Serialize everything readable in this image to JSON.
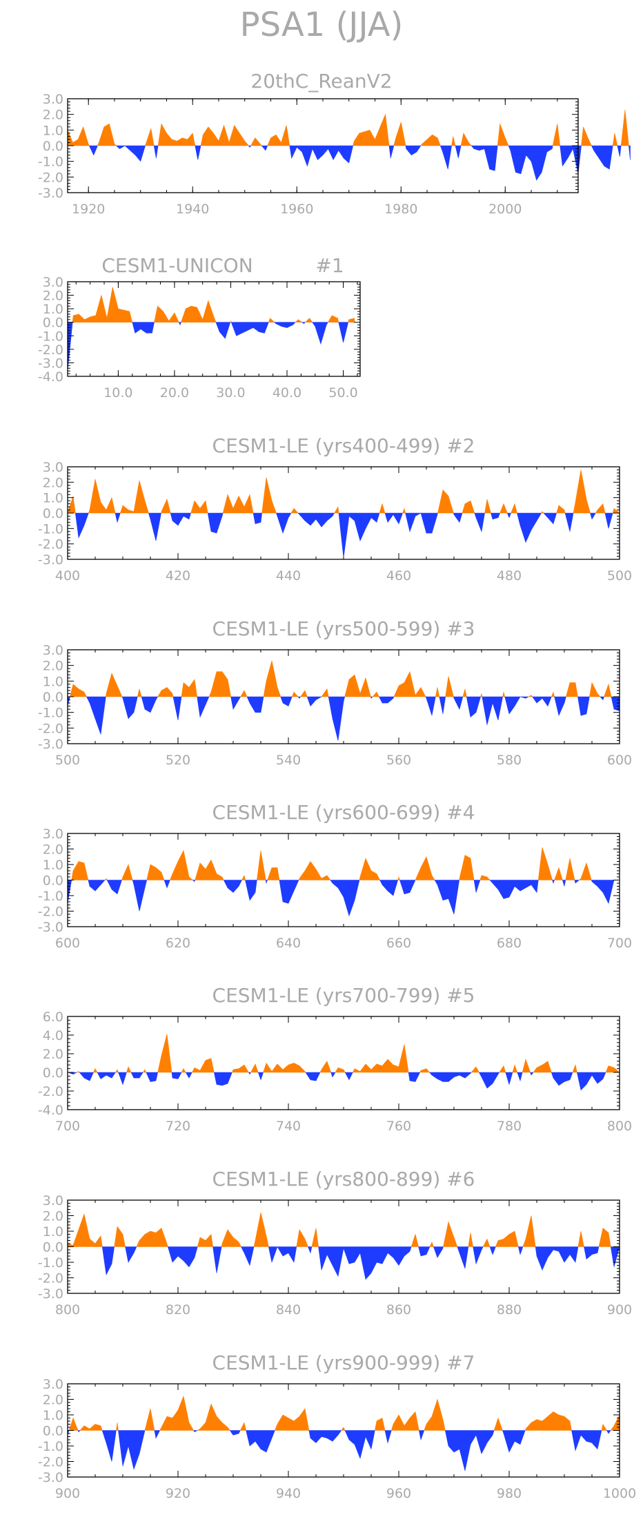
{
  "figure_title": "PSA1 (JJA)",
  "colors": {
    "positive": "#ff8000",
    "negative": "#1e3cff",
    "text": "#a9a9a9",
    "frame": "#000000"
  },
  "chart_data": [
    {
      "type": "area",
      "title": "20thC_ReanV2",
      "xlim": [
        1916,
        2014
      ],
      "ylim": [
        -3.0,
        3.0
      ],
      "x_ticks": [
        1920,
        1940,
        1960,
        1980,
        2000
      ],
      "x_tick_labels": [
        "1920",
        "1940",
        "1960",
        "1980",
        "2000"
      ],
      "y_ticks": [
        3.0,
        2.0,
        1.0,
        0.0,
        -1.0,
        -2.0,
        -3.0
      ],
      "y_tick_labels": [
        "3.0",
        "2.0",
        "1.0",
        "0.0",
        "-1.0",
        "-2.0",
        "-3.0"
      ],
      "x_start": 1916,
      "x_step": 1,
      "values": [
        1.0,
        0.2,
        0.4,
        1.2,
        0.1,
        -0.6,
        0.2,
        1.2,
        1.4,
        0.1,
        -0.2,
        0.0,
        -0.3,
        -0.6,
        -1.0,
        0.1,
        1.1,
        -0.8,
        1.4,
        0.8,
        0.4,
        0.3,
        0.5,
        0.4,
        0.8,
        -0.9,
        0.7,
        1.2,
        0.8,
        0.3,
        1.3,
        0.2,
        1.3,
        0.8,
        0.3,
        -0.1,
        0.5,
        0.1,
        -0.3,
        0.5,
        0.7,
        0.2,
        1.3,
        -0.8,
        -0.1,
        -0.4,
        -1.3,
        -0.2,
        -0.9,
        -0.6,
        -0.2,
        -0.9,
        -0.3,
        -0.8,
        -1.1,
        0.3,
        0.8,
        0.9,
        1.0,
        0.4,
        1.2,
        2.0,
        -0.8,
        0.5,
        1.5,
        -0.2,
        -0.6,
        -0.4,
        0.1,
        0.4,
        0.7,
        0.5,
        -0.4,
        -1.5,
        0.6,
        -0.8,
        0.8,
        0.2,
        -0.2,
        -0.3,
        -0.2,
        -1.5,
        -1.6,
        1.4,
        0.5,
        -0.3,
        -1.7,
        -1.8,
        -0.6,
        -1.0,
        -2.2,
        -1.7,
        -0.4,
        -0.2,
        1.4,
        -1.3,
        -0.8,
        -0.2,
        -1.8,
        1.2,
        0.4,
        -0.3,
        -0.8,
        -1.3,
        -1.5,
        0.8,
        -0.7,
        2.3,
        -0.9
      ]
    },
    {
      "type": "area",
      "title": "CESM1-UNICON",
      "tag": "#1",
      "xlim": [
        1,
        53
      ],
      "ylim": [
        -4.0,
        3.0
      ],
      "x_ticks": [
        10,
        20,
        30,
        40,
        50
      ],
      "x_tick_labels": [
        "10.0",
        "20.0",
        "30.0",
        "40.0",
        "50.0"
      ],
      "y_ticks": [
        3.0,
        2.0,
        1.0,
        0.0,
        -1.0,
        -2.0,
        -3.0,
        -4.0
      ],
      "y_tick_labels": [
        "3.0",
        "2.0",
        "1.0",
        "0.0",
        "-1.0",
        "-2.0",
        "-3.0",
        "-4.0"
      ],
      "x_start": 1,
      "x_step": 1,
      "values": [
        -3.6,
        0.5,
        0.6,
        0.2,
        0.4,
        0.5,
        2.0,
        0.3,
        2.6,
        1.0,
        0.9,
        0.8,
        -0.8,
        -0.5,
        -0.8,
        -0.8,
        1.2,
        0.8,
        0.1,
        0.7,
        -0.2,
        1.0,
        1.2,
        1.1,
        0.2,
        1.6,
        0.4,
        -0.7,
        -1.2,
        0.1,
        -1.0,
        -0.8,
        -0.6,
        -0.4,
        -0.7,
        -0.8,
        0.3,
        -0.1,
        -0.3,
        -0.4,
        -0.2,
        0.2,
        -0.1,
        0.3,
        -0.3,
        -1.6,
        -0.2,
        0.5,
        0.3,
        -1.5,
        0.2,
        0.3
      ]
    },
    {
      "type": "area",
      "title": "CESM1-LE (yrs400-499)",
      "tag": "#2",
      "xlim": [
        400,
        500
      ],
      "ylim": [
        -3.0,
        3.0
      ],
      "x_ticks": [
        400,
        420,
        440,
        460,
        480,
        500
      ],
      "x_tick_labels": [
        "400",
        "420",
        "440",
        "460",
        "480",
        "500"
      ],
      "y_ticks": [
        3.0,
        2.0,
        1.0,
        0.0,
        -1.0,
        -2.0,
        -3.0
      ],
      "y_tick_labels": [
        "3.0",
        "2.0",
        "1.0",
        "0.0",
        "-1.0",
        "-2.0",
        "-3.0"
      ],
      "x_start": 400,
      "x_step": 1,
      "values": [
        0.0,
        1.1,
        -1.6,
        -0.8,
        0.2,
        2.2,
        0.7,
        0.2,
        1.0,
        -0.6,
        0.5,
        0.2,
        0.1,
        2.1,
        0.8,
        -0.4,
        -1.8,
        0.1,
        0.9,
        -0.5,
        -0.8,
        -0.2,
        -0.4,
        0.8,
        0.3,
        0.8,
        -1.2,
        -1.3,
        -0.2,
        1.2,
        0.3,
        1.1,
        0.4,
        1.2,
        -0.7,
        -0.6,
        2.3,
        0.8,
        -0.2,
        -1.3,
        -0.3,
        0.3,
        -0.1,
        -0.5,
        -0.8,
        -0.4,
        -0.9,
        -0.5,
        -0.2,
        0.4,
        -2.9,
        -0.2,
        -0.5,
        -1.8,
        -1.0,
        -0.3,
        -0.6,
        0.6,
        -0.6,
        -0.1,
        -0.7,
        0.3,
        -1.2,
        -0.2,
        0.0,
        -1.3,
        -1.3,
        -0.1,
        1.5,
        1.1,
        -0.1,
        -0.6,
        0.6,
        0.8,
        -0.3,
        -1.2,
        0.9,
        -0.4,
        -0.3,
        0.6,
        -0.3,
        0.6,
        -0.8,
        -1.9,
        -1.1,
        -0.5,
        0.1,
        -0.3,
        -0.7,
        0.5,
        0.2,
        -1.2,
        0.7,
        2.8,
        0.9,
        -0.4,
        0.2,
        0.6,
        -1.0,
        0.3,
        0.0
      ]
    },
    {
      "type": "area",
      "title": "CESM1-LE (yrs500-599)",
      "tag": "#3",
      "xlim": [
        500,
        600
      ],
      "ylim": [
        -3.0,
        3.0
      ],
      "x_ticks": [
        500,
        520,
        540,
        560,
        580,
        600
      ],
      "x_tick_labels": [
        "500",
        "520",
        "540",
        "560",
        "580",
        "600"
      ],
      "y_ticks": [
        3.0,
        2.0,
        1.0,
        0.0,
        -1.0,
        -2.0,
        -3.0
      ],
      "y_tick_labels": [
        "3.0",
        "2.0",
        "1.0",
        "0.0",
        "-1.0",
        "-2.0",
        "-3.0"
      ],
      "x_start": 500,
      "x_step": 1,
      "values": [
        -0.6,
        0.8,
        0.5,
        0.3,
        -0.4,
        -1.4,
        -2.4,
        0.2,
        1.5,
        0.7,
        -0.1,
        -1.4,
        -1.0,
        0.5,
        -0.8,
        -1.0,
        -0.2,
        0.4,
        0.6,
        0.2,
        -1.5,
        0.9,
        0.6,
        1.1,
        -1.3,
        -0.5,
        0.3,
        1.6,
        1.6,
        1.1,
        -0.8,
        -0.2,
        0.4,
        -0.4,
        -1.0,
        -1.0,
        1.0,
        2.3,
        0.6,
        -0.4,
        -0.6,
        0.3,
        -0.1,
        0.4,
        -0.6,
        -0.2,
        0.0,
        0.5,
        -1.4,
        -2.8,
        -0.3,
        1.1,
        1.4,
        0.2,
        1.2,
        -0.1,
        0.3,
        -0.4,
        -0.4,
        -0.1,
        0.7,
        0.9,
        1.6,
        0.1,
        0.6,
        -0.1,
        -1.2,
        0.6,
        -1.1,
        1.3,
        -0.1,
        -0.8,
        0.5,
        -1.3,
        -1.0,
        0.2,
        -1.8,
        -0.4,
        -1.5,
        0.3,
        -1.1,
        -0.6,
        0.0,
        -0.1,
        0.1,
        -0.4,
        -0.1,
        -0.6,
        0.3,
        -1.2,
        -0.4,
        0.9,
        0.9,
        -1.2,
        -1.1,
        0.9,
        0.2,
        -0.2,
        0.8,
        -0.8,
        -0.9
      ]
    },
    {
      "type": "area",
      "title": "CESM1-LE (yrs600-699)",
      "tag": "#4",
      "xlim": [
        600,
        700
      ],
      "ylim": [
        -3.0,
        3.0
      ],
      "x_ticks": [
        600,
        620,
        640,
        660,
        680,
        700
      ],
      "x_tick_labels": [
        "600",
        "620",
        "640",
        "660",
        "680",
        "700"
      ],
      "y_ticks": [
        3.0,
        2.0,
        1.0,
        0.0,
        -1.0,
        -2.0,
        -3.0
      ],
      "y_tick_labels": [
        "3.0",
        "2.0",
        "1.0",
        "0.0",
        "-1.0",
        "-2.0",
        "-3.0"
      ],
      "x_start": 600,
      "x_step": 1,
      "values": [
        -1.5,
        0.6,
        1.2,
        1.1,
        -0.4,
        -0.7,
        -0.3,
        0.1,
        -0.6,
        -0.9,
        0.2,
        1.0,
        -0.3,
        -2.0,
        -0.5,
        1.0,
        0.8,
        0.5,
        -0.5,
        0.4,
        1.2,
        1.9,
        0.2,
        -0.1,
        1.1,
        0.7,
        1.3,
        0.4,
        0.2,
        -0.5,
        -0.8,
        -0.4,
        0.3,
        -1.3,
        -0.8,
        1.9,
        -0.2,
        0.8,
        0.8,
        -1.4,
        -1.5,
        -0.7,
        0.1,
        0.6,
        1.2,
        0.7,
        0.1,
        0.3,
        -0.2,
        -0.5,
        -1.1,
        -2.3,
        -1.3,
        0.2,
        1.4,
        0.6,
        0.4,
        -0.3,
        -0.7,
        -1.0,
        0.2,
        -0.9,
        -0.8,
        0.0,
        0.8,
        1.5,
        0.3,
        -0.3,
        -1.3,
        -1.2,
        -2.2,
        0.1,
        1.6,
        1.4,
        -0.8,
        0.3,
        0.2,
        -0.2,
        -0.6,
        -1.2,
        -1.1,
        -0.4,
        -0.7,
        -0.5,
        -0.3,
        -0.8,
        2.1,
        1.0,
        -0.2,
        0.8,
        -0.4,
        1.4,
        -0.2,
        0.1,
        1.1,
        -0.1,
        -0.4,
        -0.8,
        -1.5,
        0.0
      ]
    },
    {
      "type": "area",
      "title": "CESM1-LE (yrs700-799)",
      "tag": "#5",
      "xlim": [
        700,
        800
      ],
      "ylim": [
        -4.0,
        6.0
      ],
      "x_ticks": [
        700,
        720,
        740,
        760,
        780,
        800
      ],
      "x_tick_labels": [
        "700",
        "720",
        "740",
        "760",
        "780",
        "800"
      ],
      "y_ticks": [
        6.0,
        4.0,
        2.0,
        0.0,
        -2.0,
        -4.0
      ],
      "y_tick_labels": [
        "6.0",
        "4.0",
        "2.0",
        "0.0",
        "-2.0",
        "-4.0"
      ],
      "x_start": 700,
      "x_step": 1,
      "values": [
        0.0,
        -0.2,
        0.1,
        -0.6,
        -0.9,
        0.4,
        -0.7,
        -0.3,
        -0.6,
        0.3,
        -1.3,
        0.6,
        -0.6,
        -0.6,
        0.3,
        -1.0,
        -0.9,
        1.8,
        4.1,
        -0.6,
        -0.7,
        0.4,
        -0.6,
        0.5,
        0.2,
        1.3,
        1.5,
        -1.3,
        -1.4,
        -1.2,
        0.3,
        0.4,
        0.8,
        -0.2,
        0.9,
        -0.8,
        1.0,
        0.1,
        0.9,
        0.3,
        0.8,
        1.0,
        0.7,
        0.1,
        -0.8,
        -0.9,
        0.3,
        1.2,
        -0.5,
        0.5,
        0.3,
        -0.8,
        0.4,
        0.1,
        0.9,
        0.3,
        0.9,
        0.7,
        1.4,
        0.8,
        0.6,
        3.0,
        -0.9,
        -1.0,
        0.2,
        0.4,
        -0.3,
        -0.7,
        -1.0,
        -1.0,
        -0.5,
        -0.3,
        -0.6,
        -0.1,
        0.6,
        -0.5,
        -1.7,
        -1.2,
        -0.2,
        0.7,
        -1.3,
        0.8,
        -0.9,
        1.4,
        -0.3,
        0.5,
        0.8,
        1.2,
        -0.6,
        -1.4,
        -1.0,
        -0.8,
        0.8,
        -1.9,
        -1.3,
        -0.3,
        -1.2,
        -0.7,
        0.7,
        0.5,
        0.0
      ]
    },
    {
      "type": "area",
      "title": "CESM1-LE (yrs800-899)",
      "tag": "#6",
      "xlim": [
        800,
        900
      ],
      "ylim": [
        -3.0,
        3.0
      ],
      "x_ticks": [
        800,
        820,
        840,
        860,
        880,
        900
      ],
      "x_tick_labels": [
        "800",
        "820",
        "840",
        "860",
        "880",
        "900"
      ],
      "y_ticks": [
        3.0,
        2.0,
        1.0,
        0.0,
        -1.0,
        -2.0,
        -3.0
      ],
      "y_tick_labels": [
        "3.0",
        "2.0",
        "1.0",
        "0.0",
        "-1.0",
        "-2.0",
        "-3.0"
      ],
      "x_start": 800,
      "x_step": 1,
      "values": [
        0.2,
        0.1,
        1.1,
        2.1,
        0.5,
        0.2,
        0.7,
        -1.8,
        -1.1,
        1.3,
        0.8,
        -1.0,
        -0.4,
        0.4,
        0.8,
        1.0,
        0.9,
        1.2,
        0.2,
        -1.0,
        -0.6,
        -0.9,
        -1.3,
        -0.7,
        0.6,
        0.4,
        0.8,
        -1.7,
        0.2,
        1.1,
        0.6,
        0.3,
        -0.4,
        -1.2,
        0.4,
        2.2,
        0.7,
        -1.0,
        0.0,
        -0.6,
        -0.4,
        -1.0,
        1.1,
        0.5,
        -0.4,
        1.2,
        -1.5,
        -0.5,
        -1.2,
        -1.9,
        -0.1,
        -1.1,
        -1.0,
        -0.4,
        -2.1,
        -1.7,
        -1.0,
        -1.1,
        -0.4,
        -0.7,
        -1.2,
        -0.6,
        -0.3,
        0.8,
        -0.6,
        -0.5,
        0.3,
        -0.7,
        -0.1,
        1.6,
        0.6,
        -0.4,
        -1.4,
        0.9,
        -1.1,
        -0.2,
        0.5,
        -0.5,
        0.4,
        0.5,
        0.8,
        1.0,
        -0.5,
        0.5,
        2.0,
        -0.6,
        -1.5,
        -0.7,
        -0.2,
        -0.3,
        -1.0,
        -0.5,
        -1.0,
        1.0,
        -0.8,
        -0.5,
        -0.4,
        1.2,
        0.9,
        -1.3,
        0.0
      ]
    },
    {
      "type": "area",
      "title": "CESM1-LE (yrs900-999)",
      "tag": "#7",
      "xlim": [
        900,
        1000
      ],
      "ylim": [
        -3.0,
        3.0
      ],
      "x_ticks": [
        900,
        920,
        940,
        960,
        980,
        1000
      ],
      "x_tick_labels": [
        "900",
        "920",
        "940",
        "960",
        "980",
        "1000"
      ],
      "y_ticks": [
        3.0,
        2.0,
        1.0,
        0.0,
        -1.0,
        -2.0,
        -3.0
      ],
      "y_tick_labels": [
        "3.0",
        "2.0",
        "1.0",
        "0.0",
        "-1.0",
        "-2.0",
        "-3.0"
      ],
      "x_start": 900,
      "x_step": 1,
      "values": [
        -0.3,
        0.8,
        -0.1,
        0.3,
        0.1,
        0.4,
        0.3,
        -0.8,
        -2.0,
        0.5,
        -2.3,
        -1.0,
        -2.5,
        -1.5,
        0.0,
        1.4,
        -0.5,
        0.2,
        0.9,
        0.8,
        1.3,
        2.2,
        0.5,
        -0.1,
        0.1,
        0.5,
        1.7,
        0.9,
        0.5,
        0.2,
        -0.3,
        -0.2,
        0.5,
        -1.0,
        -0.7,
        -1.2,
        -1.4,
        -0.5,
        0.4,
        1.0,
        0.8,
        0.6,
        0.9,
        1.4,
        -0.5,
        -0.8,
        -0.4,
        -0.5,
        -0.7,
        -0.3,
        0.2,
        -0.6,
        -0.9,
        -1.8,
        -0.4,
        -1.2,
        0.6,
        0.8,
        -0.8,
        0.4,
        1.0,
        0.3,
        0.8,
        1.2,
        -0.6,
        0.4,
        0.9,
        2.0,
        0.7,
        -1.0,
        -1.4,
        -1.2,
        -2.6,
        -0.9,
        -0.3,
        -1.5,
        -0.8,
        -0.3,
        0.8,
        -0.2,
        -1.4,
        -0.7,
        -0.9,
        0.1,
        0.5,
        0.7,
        0.6,
        0.9,
        1.2,
        1.0,
        0.9,
        0.6,
        -1.3,
        -0.3,
        -0.7,
        -0.8,
        -1.2,
        0.4,
        -0.2,
        0.3,
        1.0
      ]
    }
  ]
}
